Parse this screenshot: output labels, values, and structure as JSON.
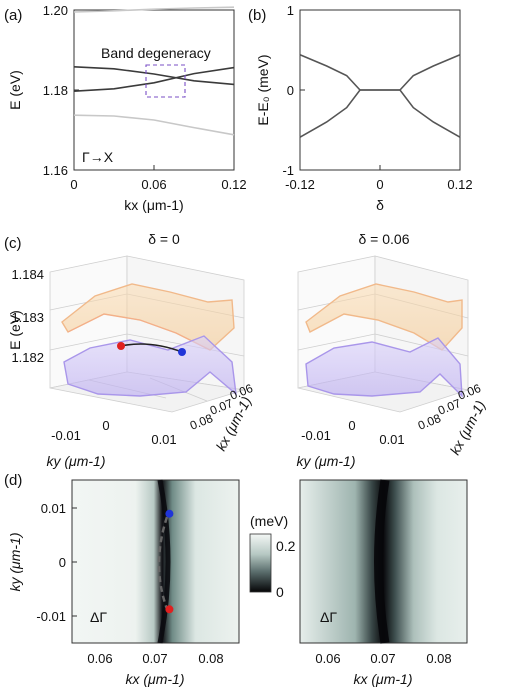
{
  "chart_data": [
    {
      "panel": "(a)",
      "type": "line",
      "ylabel": "E (eV)",
      "xlabel": "kx (μm-1)",
      "xlim": [
        0,
        0.12
      ],
      "ylim": [
        1.16,
        1.2
      ],
      "xticks": [
        "0",
        "0.06",
        "0.12"
      ],
      "yticks": [
        "1.16",
        "1.18",
        "1.20"
      ],
      "annotation": "Band degeneracy",
      "path_label": "Γ→X",
      "series": [
        {
          "x": [
            0,
            0.03,
            0.06,
            0.09,
            0.12
          ],
          "values": [
            1.1995,
            1.1998,
            1.2002,
            1.2005,
            1.2007
          ]
        },
        {
          "x": [
            0,
            0.03,
            0.06,
            0.09,
            0.12
          ],
          "values": [
            1.1858,
            1.1853,
            1.184,
            1.1823,
            1.1814
          ]
        },
        {
          "x": [
            0,
            0.03,
            0.06,
            0.09,
            0.12
          ],
          "values": [
            1.1797,
            1.1803,
            1.1818,
            1.1841,
            1.1856
          ]
        },
        {
          "x": [
            0,
            0.03,
            0.06,
            0.09,
            0.12
          ],
          "values": [
            1.1737,
            1.1735,
            1.1725,
            1.1706,
            1.1688
          ]
        }
      ],
      "colors": [
        "#c8c8c8",
        "#3b3b3b",
        "#3b3b3b",
        "#c8c8c8"
      ]
    },
    {
      "panel": "(b)",
      "type": "line",
      "ylabel": "E-E₀ (meV)",
      "xlabel": "δ",
      "xlim": [
        -0.12,
        0.12
      ],
      "ylim": [
        -1,
        1
      ],
      "xticks": [
        "-0.12",
        "0",
        "0.12"
      ],
      "yticks": [
        "-1",
        "0",
        "1"
      ],
      "series": [
        {
          "x": [
            -0.12,
            -0.08,
            -0.05,
            -0.03,
            0.03,
            0.05,
            0.08,
            0.12
          ],
          "values": [
            0.44,
            0.3,
            0.18,
            0.0,
            0.0,
            0.18,
            0.3,
            0.44
          ]
        },
        {
          "x": [
            -0.12,
            -0.08,
            -0.05,
            -0.03,
            0.03,
            0.05,
            0.08,
            0.12
          ],
          "values": [
            -0.59,
            -0.4,
            -0.22,
            0.0,
            0.0,
            -0.22,
            -0.4,
            -0.59
          ]
        }
      ]
    },
    {
      "panel": "(c)",
      "type": "surface",
      "titles": [
        "δ = 0",
        "δ = 0.06"
      ],
      "zlabel": "E (eV)",
      "zticks": [
        "1.182",
        "1.183",
        "1.184"
      ],
      "yaxis_label": "ky (μm-1)",
      "yticks": [
        "-0.01",
        "0",
        "0.01"
      ],
      "xaxis_label": "kx (μm-1)",
      "xticks": [
        "0.06",
        "0.07",
        "0.08"
      ],
      "series_colors": [
        "#f5c98f",
        "#b8a8f0"
      ],
      "points": [
        "#e02020",
        "#2035d8"
      ]
    },
    {
      "panel": "(d)",
      "type": "heatmap",
      "xlabel": "kx (μm-1)",
      "ylabel": "ky (μm-1)",
      "xlim": [
        0.055,
        0.085
      ],
      "ylim": [
        -0.015,
        0.015
      ],
      "xticks": [
        "0.06",
        "0.07",
        "0.08"
      ],
      "yticks": [
        "0.01",
        "0",
        "-0.01"
      ],
      "map_label": "ΔΓ",
      "colorbar_label": "(meV)",
      "colorbar_ticks": [
        "0.2",
        "0"
      ],
      "points": [
        {
          "kx": 0.0725,
          "ky": 0.0088,
          "color": "#2035d8"
        },
        {
          "kx": 0.0725,
          "ky": -0.0088,
          "color": "#e02020"
        }
      ]
    }
  ],
  "panel_labels": [
    "(a)",
    "(b)",
    "(c)",
    "(d)"
  ]
}
